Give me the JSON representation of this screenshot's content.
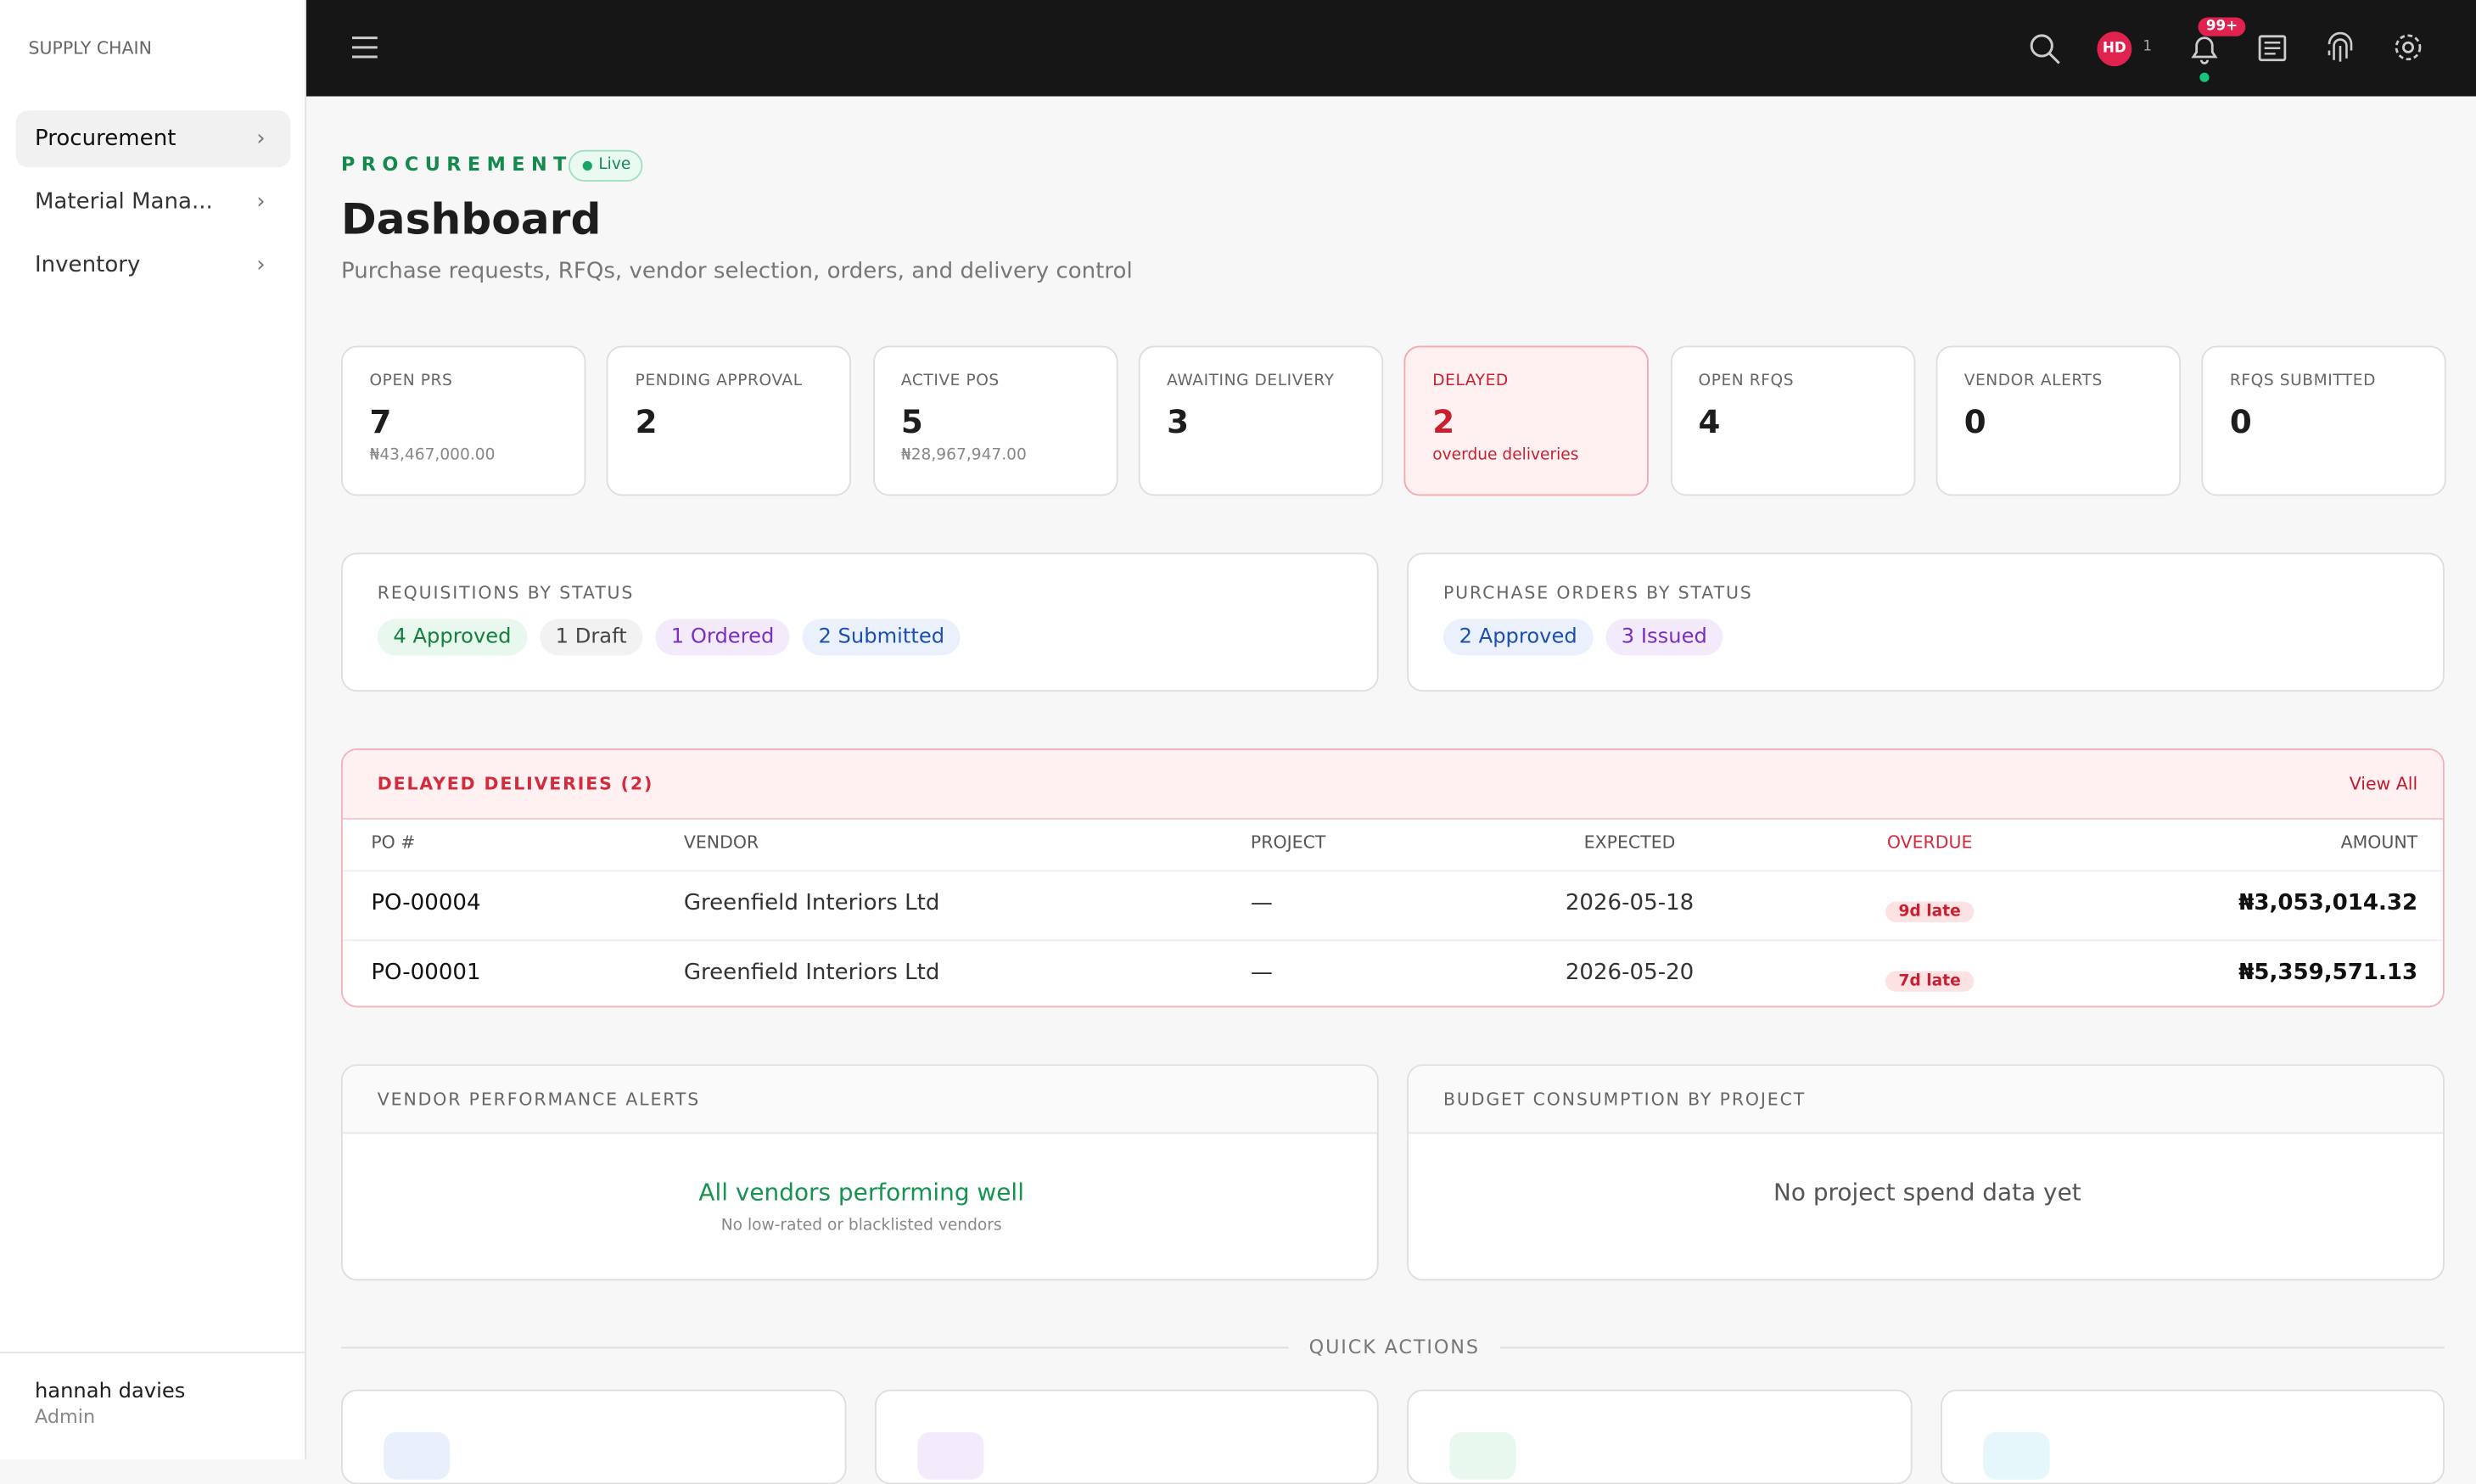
{
  "sidebar": {
    "brand": "SUPPLY CHAIN",
    "nav": [
      "Procurement",
      "Material Mana...",
      "Inventory"
    ],
    "user": {
      "name": "hannah davies",
      "role": "Admin"
    }
  },
  "topbar": {
    "avatar": "HD",
    "avatar_count": "1",
    "notification_badge": "99+"
  },
  "header": {
    "eyebrow": "PROCUREMENT",
    "status": "Live",
    "title": "Dashboard",
    "subtitle": "Purchase requests, RFQs, vendor selection, orders, and delivery control"
  },
  "kpis": [
    {
      "label": "OPEN PRS",
      "value": "7",
      "sub": "₦43,467,000.00"
    },
    {
      "label": "PENDING APPROVAL",
      "value": "2"
    },
    {
      "label": "ACTIVE POS",
      "value": "5",
      "sub": "₦28,967,947.00"
    },
    {
      "label": "AWAITING DELIVERY",
      "value": "3"
    },
    {
      "label": "DELAYED",
      "value": "2",
      "sub": "overdue deliveries"
    },
    {
      "label": "OPEN RFQS",
      "value": "4"
    },
    {
      "label": "VENDOR ALERTS",
      "value": "0"
    },
    {
      "label": "RFQS SUBMITTED",
      "value": "0"
    }
  ],
  "requisitions": {
    "title": "REQUISITIONS BY STATUS",
    "pills": [
      "4 Approved",
      "1 Draft",
      "1 Ordered",
      "2 Submitted"
    ]
  },
  "purchase_orders": {
    "title": "PURCHASE ORDERS BY STATUS",
    "pills": [
      "2 Approved",
      "3 Issued"
    ]
  },
  "delayed": {
    "title": "DELAYED DELIVERIES (2)",
    "action": "View All",
    "columns": [
      "PO #",
      "VENDOR",
      "PROJECT",
      "EXPECTED",
      "OVERDUE",
      "AMOUNT"
    ],
    "rows": [
      [
        "PO-00004",
        "Greenfield Interiors Ltd",
        "—",
        "2026-05-18",
        "9d late",
        "₦3,053,014.32"
      ],
      [
        "PO-00001",
        "Greenfield Interiors Ltd",
        "—",
        "2026-05-20",
        "7d late",
        "₦5,359,571.13"
      ]
    ]
  },
  "vendor_alerts": {
    "title": "VENDOR PERFORMANCE ALERTS",
    "message": "All vendors performing well",
    "detail": "No low-rated or blacklisted vendors"
  },
  "budget": {
    "title": "BUDGET CONSUMPTION BY PROJECT",
    "message": "No project spend data yet"
  },
  "quick_actions": {
    "title": "QUICK ACTIONS"
  }
}
